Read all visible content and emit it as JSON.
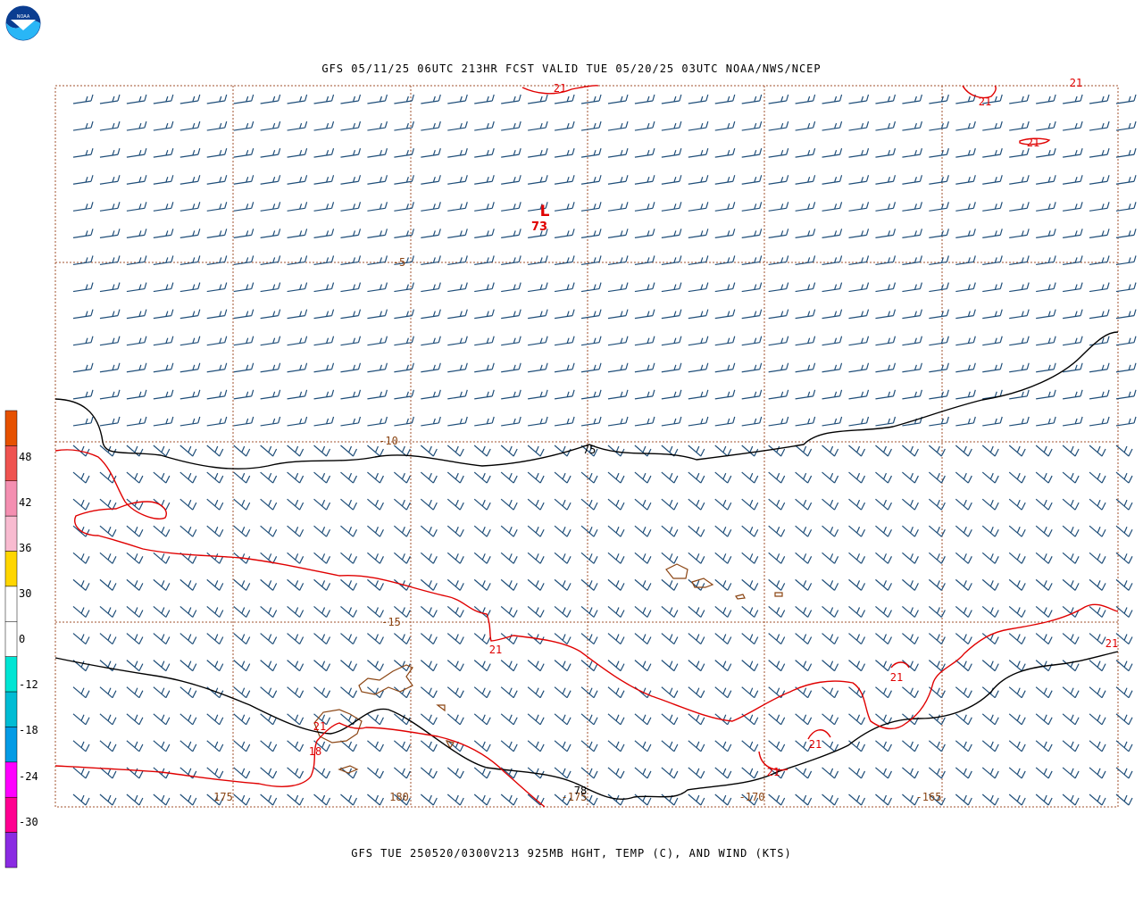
{
  "header": {
    "title": "GFS 05/11/25 06UTC 213HR FCST VALID TUE 05/20/25 03UTC NOAA/NWS/NCEP",
    "footer": "GFS TUE 250520/0300V213 925MB HGHT, TEMP (C), AND WIND (KTS)",
    "logo_text": "NOAA"
  },
  "colors": {
    "grid": "#a0522d",
    "barb": "#1f4e79",
    "temp_contour": "#e00000",
    "height_contour": "#000000",
    "coastline": "#8b4513"
  },
  "colorbar": {
    "labels": [
      "48",
      "42",
      "36",
      "30",
      "0",
      "-12",
      "-18",
      "-24",
      "-30"
    ],
    "bands": [
      "#e65100",
      "#ef5350",
      "#f48fb1",
      "#f8bbd0",
      "#ffd600",
      "#ffffff",
      "#ffffff",
      "#00e5d4",
      "#00bcd4",
      "#039be5",
      "#ff00ff",
      "#ff0090",
      "#8a2be2"
    ]
  },
  "labels": {
    "longitudes": [
      "175",
      "180",
      "-175",
      "-170",
      "-165"
    ],
    "latitudes": [
      "-5",
      "-10",
      "-15"
    ],
    "height_contours": [
      "75",
      "78"
    ],
    "temp_contours": [
      "21",
      "21",
      "21",
      "21",
      "21",
      "21",
      "21",
      "21",
      "21",
      "21",
      "18"
    ],
    "low_symbol": "L",
    "low_value": "73"
  }
}
